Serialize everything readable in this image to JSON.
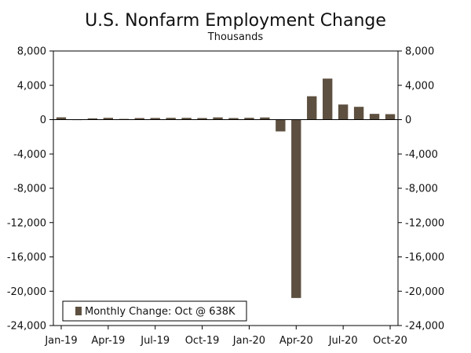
{
  "chart_data": {
    "type": "bar",
    "title": "U.S. Nonfarm Employment Change",
    "subtitle": "Thousands",
    "xlabel": "",
    "ylabel": "",
    "ylim": [
      -24000,
      8000
    ],
    "yticks": [
      8000,
      4000,
      0,
      -4000,
      -8000,
      -12000,
      -16000,
      -20000,
      -24000
    ],
    "ytick_labels": [
      "8,000",
      "4,000",
      "0",
      "-4,000",
      "-8,000",
      "-12,000",
      "-16,000",
      "-20,000",
      "-24,000"
    ],
    "x_tick_labels": [
      {
        "index": 0,
        "label": "Jan-19"
      },
      {
        "index": 3,
        "label": "Apr-19"
      },
      {
        "index": 6,
        "label": "Jul-19"
      },
      {
        "index": 9,
        "label": "Oct-19"
      },
      {
        "index": 12,
        "label": "Jan-20"
      },
      {
        "index": 15,
        "label": "Apr-20"
      },
      {
        "index": 18,
        "label": "Jul-20"
      },
      {
        "index": 21,
        "label": "Oct-20"
      }
    ],
    "categories": [
      "Jan-19",
      "Feb-19",
      "Mar-19",
      "Apr-19",
      "May-19",
      "Jun-19",
      "Jul-19",
      "Aug-19",
      "Sep-19",
      "Oct-19",
      "Nov-19",
      "Dec-19",
      "Jan-20",
      "Feb-20",
      "Mar-20",
      "Apr-20",
      "May-20",
      "Jun-20",
      "Jul-20",
      "Aug-20",
      "Sep-20",
      "Oct-20"
    ],
    "series": [
      {
        "name": "Monthly Change: Oct @ 638K",
        "values": [
          268,
          1,
          147,
          210,
          85,
          182,
          194,
          207,
          208,
          185,
          261,
          184,
          214,
          251,
          -1373,
          -20787,
          2725,
          4781,
          1761,
          1493,
          672,
          638
        ]
      }
    ],
    "legend_position": "bottom-left",
    "color": "#5e5040",
    "grid": false,
    "dual_y_axis": true
  }
}
